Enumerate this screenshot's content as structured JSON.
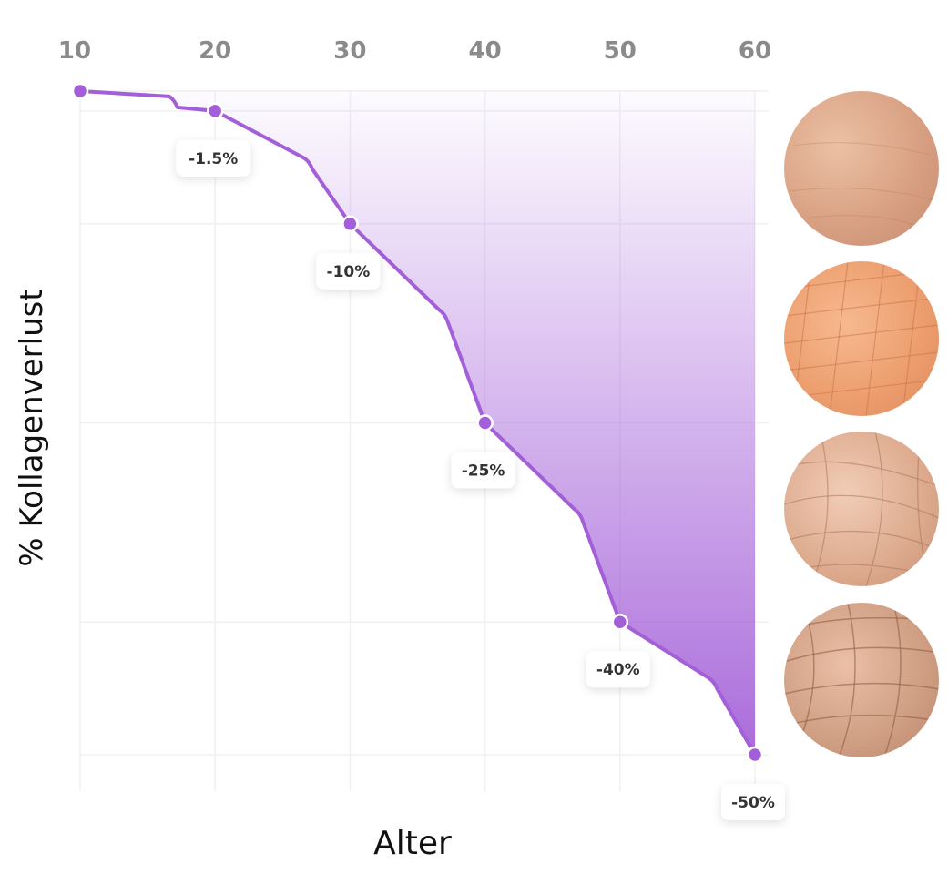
{
  "chart_data": {
    "type": "area",
    "title": "",
    "xlabel": "Alter",
    "ylabel": "% Kollagenverlust",
    "x_ticks": [
      "10",
      "20",
      "30",
      "40",
      "50",
      "60"
    ],
    "x": [
      10,
      20,
      30,
      40,
      50,
      60
    ],
    "y": [
      0,
      -1.5,
      -10,
      -25,
      -40,
      -50
    ],
    "labels": [
      "-1.5%",
      "-10%",
      "-25%",
      "-40%",
      "-50%"
    ],
    "line_color": "#a35fd8",
    "fill_color": "#a35fd8",
    "grid": true,
    "legend": "none"
  },
  "images": [
    {
      "name": "skin-texture-age-1"
    },
    {
      "name": "skin-texture-age-2"
    },
    {
      "name": "skin-texture-age-3"
    },
    {
      "name": "skin-texture-age-4"
    }
  ]
}
